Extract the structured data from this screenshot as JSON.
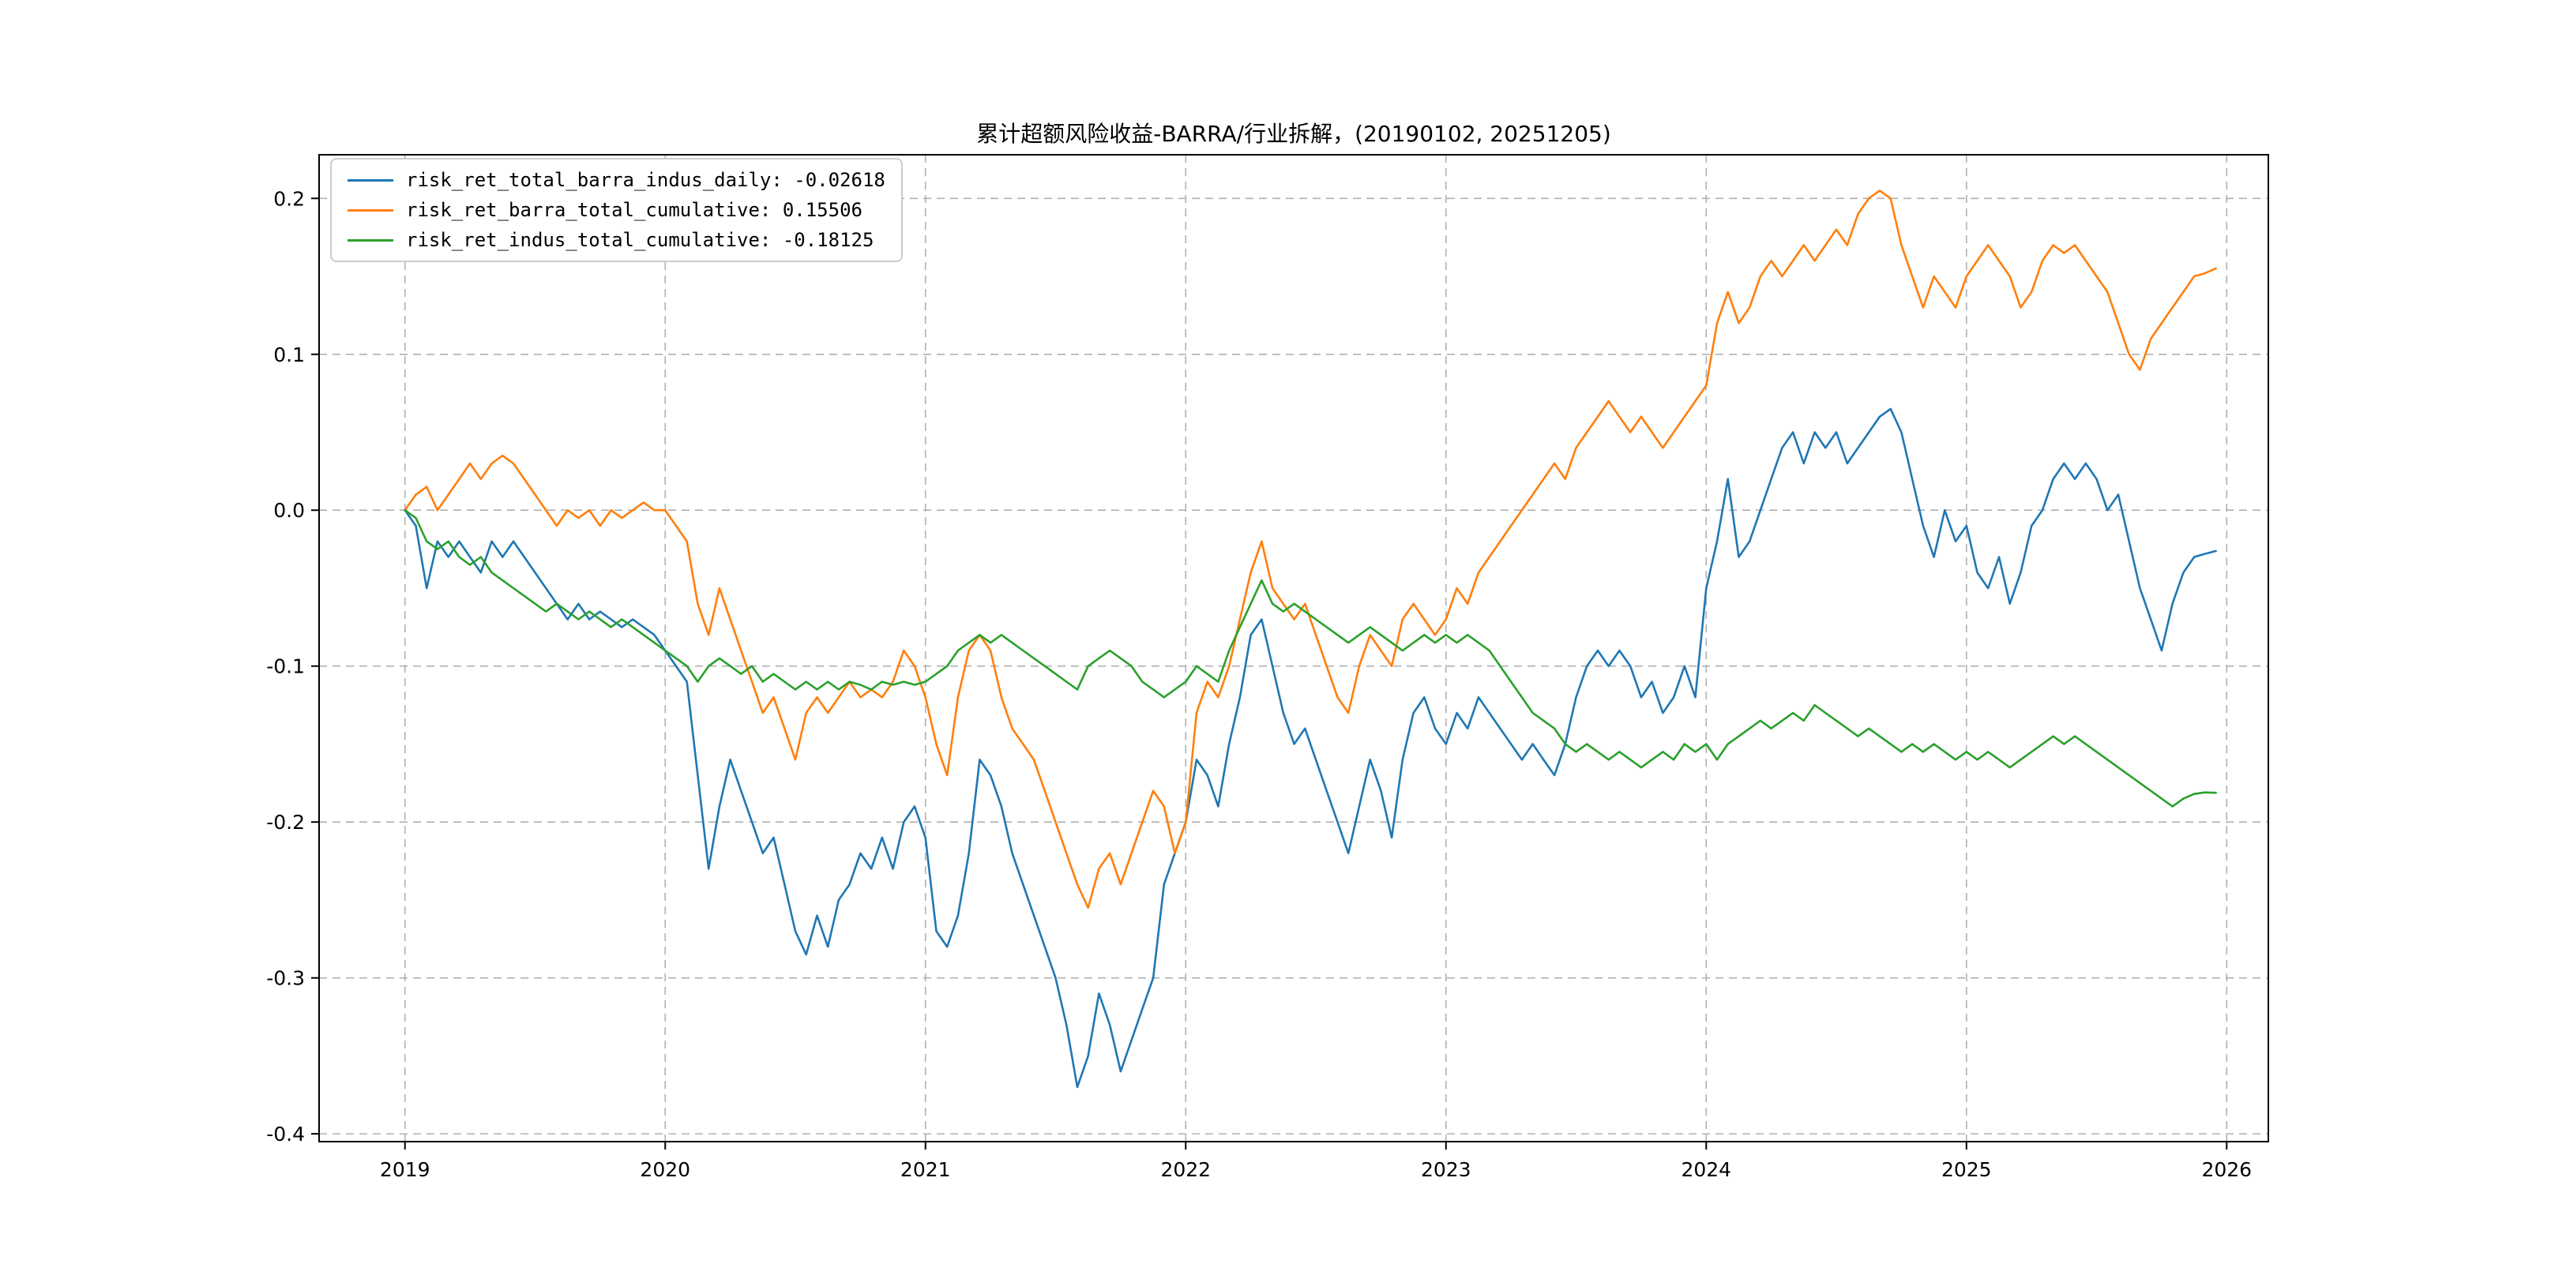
{
  "page": {
    "background": "#ffffff"
  },
  "chart_data": {
    "type": "line",
    "title": "累计超额风险收益-BARRA/行业拆解，(20190102, 20251205)",
    "xlabel": "",
    "ylabel": "",
    "grid": true,
    "legend_position": "upper-left",
    "xlim": [
      2018.67,
      2026.16
    ],
    "ylim": [
      -0.405,
      0.228
    ],
    "x_ticks": [
      2019,
      2020,
      2021,
      2022,
      2023,
      2024,
      2025,
      2026
    ],
    "x_tick_labels": [
      "2019",
      "2020",
      "2021",
      "2022",
      "2023",
      "2024",
      "2025",
      "2026"
    ],
    "y_ticks": [
      0.2,
      0.1,
      0.0,
      -0.1,
      -0.2,
      -0.3,
      -0.4
    ],
    "y_tick_labels": [
      "0.2",
      "0.1",
      "0.0",
      "-0.1",
      "-0.2",
      "-0.3",
      "-0.4"
    ],
    "x_start": 2019.0,
    "x_step": 0.0416667,
    "series": [
      {
        "name": "risk_ret_total_barra_indus_daily",
        "legend_label": "risk_ret_total_barra_indus_daily: -0.02618",
        "final_value": -0.02618,
        "color": "#1f77b4",
        "values": [
          0.0,
          -0.01,
          -0.05,
          -0.02,
          -0.03,
          -0.02,
          -0.03,
          -0.04,
          -0.02,
          -0.03,
          -0.02,
          -0.03,
          -0.04,
          -0.05,
          -0.06,
          -0.07,
          -0.06,
          -0.07,
          -0.065,
          -0.07,
          -0.075,
          -0.07,
          -0.075,
          -0.08,
          -0.09,
          -0.1,
          -0.11,
          -0.17,
          -0.23,
          -0.19,
          -0.16,
          -0.18,
          -0.2,
          -0.22,
          -0.21,
          -0.24,
          -0.27,
          -0.285,
          -0.26,
          -0.28,
          -0.25,
          -0.24,
          -0.22,
          -0.23,
          -0.21,
          -0.23,
          -0.2,
          -0.19,
          -0.21,
          -0.27,
          -0.28,
          -0.26,
          -0.22,
          -0.16,
          -0.17,
          -0.19,
          -0.22,
          -0.24,
          -0.26,
          -0.28,
          -0.3,
          -0.33,
          -0.37,
          -0.35,
          -0.31,
          -0.33,
          -0.36,
          -0.34,
          -0.32,
          -0.3,
          -0.24,
          -0.22,
          -0.2,
          -0.16,
          -0.17,
          -0.19,
          -0.15,
          -0.12,
          -0.08,
          -0.07,
          -0.1,
          -0.13,
          -0.15,
          -0.14,
          -0.16,
          -0.18,
          -0.2,
          -0.22,
          -0.19,
          -0.16,
          -0.18,
          -0.21,
          -0.16,
          -0.13,
          -0.12,
          -0.14,
          -0.15,
          -0.13,
          -0.14,
          -0.12,
          -0.13,
          -0.14,
          -0.15,
          -0.16,
          -0.15,
          -0.16,
          -0.17,
          -0.15,
          -0.12,
          -0.1,
          -0.09,
          -0.1,
          -0.09,
          -0.1,
          -0.12,
          -0.11,
          -0.13,
          -0.12,
          -0.1,
          -0.12,
          -0.05,
          -0.02,
          0.02,
          -0.03,
          -0.02,
          0.0,
          0.02,
          0.04,
          0.05,
          0.03,
          0.05,
          0.04,
          0.05,
          0.03,
          0.04,
          0.05,
          0.06,
          0.065,
          0.05,
          0.02,
          -0.01,
          -0.03,
          0.0,
          -0.02,
          -0.01,
          -0.04,
          -0.05,
          -0.03,
          -0.06,
          -0.04,
          -0.01,
          0.0,
          0.02,
          0.03,
          0.02,
          0.03,
          0.02,
          0.0,
          0.01,
          -0.02,
          -0.05,
          -0.07,
          -0.09,
          -0.06,
          -0.04,
          -0.03,
          -0.028,
          -0.02618
        ]
      },
      {
        "name": "risk_ret_barra_total_cumulative",
        "legend_label": "risk_ret_barra_total_cumulative: 0.15506",
        "final_value": 0.15506,
        "color": "#ff7f0e",
        "values": [
          0.0,
          0.01,
          0.015,
          0.0,
          0.01,
          0.02,
          0.03,
          0.02,
          0.03,
          0.035,
          0.03,
          0.02,
          0.01,
          0.0,
          -0.01,
          0.0,
          -0.005,
          0.0,
          -0.01,
          0.0,
          -0.005,
          0.0,
          0.005,
          0.0,
          0.0,
          -0.01,
          -0.02,
          -0.06,
          -0.08,
          -0.05,
          -0.07,
          -0.09,
          -0.11,
          -0.13,
          -0.12,
          -0.14,
          -0.16,
          -0.13,
          -0.12,
          -0.13,
          -0.12,
          -0.11,
          -0.12,
          -0.115,
          -0.12,
          -0.11,
          -0.09,
          -0.1,
          -0.12,
          -0.15,
          -0.17,
          -0.12,
          -0.09,
          -0.08,
          -0.09,
          -0.12,
          -0.14,
          -0.15,
          -0.16,
          -0.18,
          -0.2,
          -0.22,
          -0.24,
          -0.255,
          -0.23,
          -0.22,
          -0.24,
          -0.22,
          -0.2,
          -0.18,
          -0.19,
          -0.22,
          -0.2,
          -0.13,
          -0.11,
          -0.12,
          -0.1,
          -0.07,
          -0.04,
          -0.02,
          -0.05,
          -0.06,
          -0.07,
          -0.06,
          -0.08,
          -0.1,
          -0.12,
          -0.13,
          -0.1,
          -0.08,
          -0.09,
          -0.1,
          -0.07,
          -0.06,
          -0.07,
          -0.08,
          -0.07,
          -0.05,
          -0.06,
          -0.04,
          -0.03,
          -0.02,
          -0.01,
          0.0,
          0.01,
          0.02,
          0.03,
          0.02,
          0.04,
          0.05,
          0.06,
          0.07,
          0.06,
          0.05,
          0.06,
          0.05,
          0.04,
          0.05,
          0.06,
          0.07,
          0.08,
          0.12,
          0.14,
          0.12,
          0.13,
          0.15,
          0.16,
          0.15,
          0.16,
          0.17,
          0.16,
          0.17,
          0.18,
          0.17,
          0.19,
          0.2,
          0.205,
          0.2,
          0.17,
          0.15,
          0.13,
          0.15,
          0.14,
          0.13,
          0.15,
          0.16,
          0.17,
          0.16,
          0.15,
          0.13,
          0.14,
          0.16,
          0.17,
          0.165,
          0.17,
          0.16,
          0.15,
          0.14,
          0.12,
          0.1,
          0.09,
          0.11,
          0.12,
          0.13,
          0.14,
          0.15,
          0.152,
          0.15506
        ]
      },
      {
        "name": "risk_ret_indus_total_cumulative",
        "legend_label": "risk_ret_indus_total_cumulative: -0.18125",
        "final_value": -0.18125,
        "color": "#2ca02c",
        "values": [
          0.0,
          -0.005,
          -0.02,
          -0.025,
          -0.02,
          -0.03,
          -0.035,
          -0.03,
          -0.04,
          -0.045,
          -0.05,
          -0.055,
          -0.06,
          -0.065,
          -0.06,
          -0.065,
          -0.07,
          -0.065,
          -0.07,
          -0.075,
          -0.07,
          -0.075,
          -0.08,
          -0.085,
          -0.09,
          -0.095,
          -0.1,
          -0.11,
          -0.1,
          -0.095,
          -0.1,
          -0.105,
          -0.1,
          -0.11,
          -0.105,
          -0.11,
          -0.115,
          -0.11,
          -0.115,
          -0.11,
          -0.115,
          -0.11,
          -0.112,
          -0.115,
          -0.11,
          -0.112,
          -0.11,
          -0.112,
          -0.11,
          -0.105,
          -0.1,
          -0.09,
          -0.085,
          -0.08,
          -0.085,
          -0.08,
          -0.085,
          -0.09,
          -0.095,
          -0.1,
          -0.105,
          -0.11,
          -0.115,
          -0.1,
          -0.095,
          -0.09,
          -0.095,
          -0.1,
          -0.11,
          -0.115,
          -0.12,
          -0.115,
          -0.11,
          -0.1,
          -0.105,
          -0.11,
          -0.09,
          -0.075,
          -0.06,
          -0.045,
          -0.06,
          -0.065,
          -0.06,
          -0.065,
          -0.07,
          -0.075,
          -0.08,
          -0.085,
          -0.08,
          -0.075,
          -0.08,
          -0.085,
          -0.09,
          -0.085,
          -0.08,
          -0.085,
          -0.08,
          -0.085,
          -0.08,
          -0.085,
          -0.09,
          -0.1,
          -0.11,
          -0.12,
          -0.13,
          -0.135,
          -0.14,
          -0.15,
          -0.155,
          -0.15,
          -0.155,
          -0.16,
          -0.155,
          -0.16,
          -0.165,
          -0.16,
          -0.155,
          -0.16,
          -0.15,
          -0.155,
          -0.15,
          -0.16,
          -0.15,
          -0.145,
          -0.14,
          -0.135,
          -0.14,
          -0.135,
          -0.13,
          -0.135,
          -0.125,
          -0.13,
          -0.135,
          -0.14,
          -0.145,
          -0.14,
          -0.145,
          -0.15,
          -0.155,
          -0.15,
          -0.155,
          -0.15,
          -0.155,
          -0.16,
          -0.155,
          -0.16,
          -0.155,
          -0.16,
          -0.165,
          -0.16,
          -0.155,
          -0.15,
          -0.145,
          -0.15,
          -0.145,
          -0.15,
          -0.155,
          -0.16,
          -0.165,
          -0.17,
          -0.175,
          -0.18,
          -0.185,
          -0.19,
          -0.185,
          -0.182,
          -0.181,
          -0.18125
        ]
      }
    ]
  }
}
